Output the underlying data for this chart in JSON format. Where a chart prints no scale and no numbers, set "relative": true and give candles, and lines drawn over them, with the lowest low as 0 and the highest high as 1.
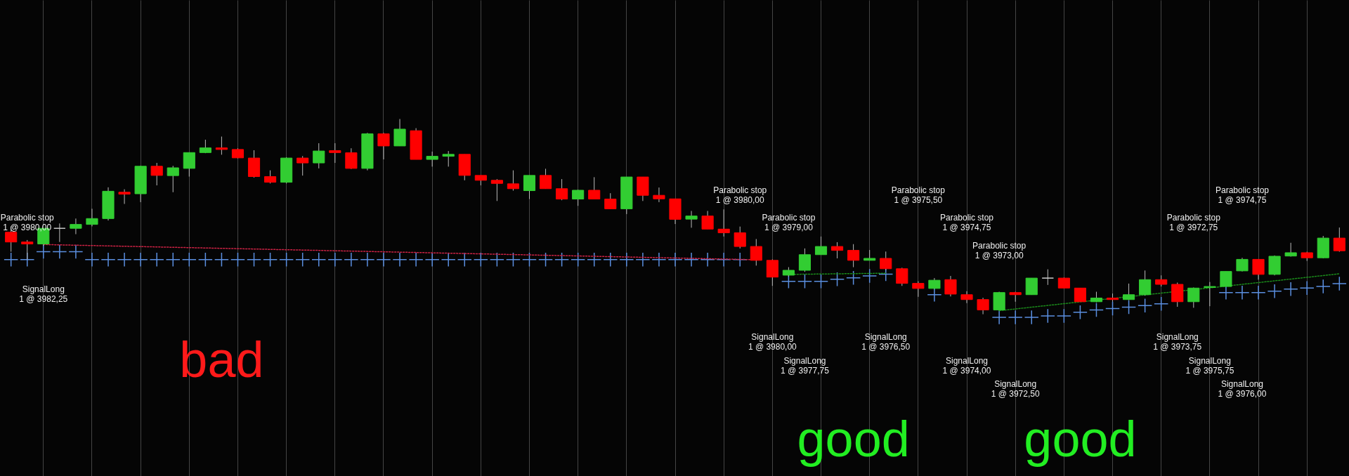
{
  "chart_data": {
    "type": "candlestick",
    "relative": true,
    "grid": "x",
    "tick_labels": false,
    "categories": [
      null,
      null,
      null,
      null,
      null,
      null,
      null,
      null,
      null,
      null,
      null,
      null,
      null,
      null,
      null,
      null,
      null,
      null,
      null,
      null,
      null,
      null,
      null,
      null,
      null,
      null,
      null,
      null,
      null,
      null,
      null,
      null,
      null,
      null,
      null,
      null,
      null,
      null,
      null,
      null,
      null,
      null,
      null,
      null,
      null,
      null,
      null,
      null,
      null,
      null,
      null,
      null,
      null,
      null,
      null,
      null,
      null,
      null,
      null,
      null,
      null,
      null,
      null,
      null,
      null,
      null,
      null,
      null,
      null,
      null,
      null,
      null,
      null,
      null,
      null,
      null,
      null,
      null,
      null,
      null,
      null,
      null,
      null
    ],
    "ohlc": [
      [
        0.42,
        0.45,
        0.32,
        0.37
      ],
      [
        0.37,
        0.38,
        0.28,
        0.36
      ],
      [
        0.36,
        0.44,
        0.35,
        0.44
      ],
      [
        0.44,
        0.465,
        0.37,
        0.44
      ],
      [
        0.44,
        0.49,
        0.41,
        0.46
      ],
      [
        0.46,
        0.54,
        0.45,
        0.49
      ],
      [
        0.49,
        0.65,
        0.48,
        0.63
      ],
      [
        0.625,
        0.64,
        0.565,
        0.615
      ],
      [
        0.617,
        0.761,
        0.574,
        0.758
      ],
      [
        0.758,
        0.775,
        0.66,
        0.711
      ],
      [
        0.71,
        0.76,
        0.625,
        0.75
      ],
      [
        0.747,
        0.828,
        0.705,
        0.828
      ],
      [
        0.828,
        0.894,
        0.825,
        0.852
      ],
      [
        0.852,
        0.91,
        0.817,
        0.844
      ],
      [
        0.844,
        0.85,
        0.798,
        0.801
      ],
      [
        0.8,
        0.84,
        0.7,
        0.705
      ],
      [
        0.705,
        0.737,
        0.67,
        0.676
      ],
      [
        0.676,
        0.804,
        0.67,
        0.8
      ],
      [
        0.8,
        0.81,
        0.71,
        0.775
      ],
      [
        0.775,
        0.876,
        0.747,
        0.836
      ],
      [
        0.838,
        0.876,
        0.775,
        0.828
      ],
      [
        0.827,
        0.85,
        0.744,
        0.747
      ],
      [
        0.747,
        0.929,
        0.737,
        0.924
      ],
      [
        0.924,
        0.929,
        0.793,
        0.862
      ],
      [
        0.862,
        1,
        0.862,
        0.948
      ],
      [
        0.94,
        0.953,
        0.793,
        0.793
      ],
      [
        0.793,
        0.833,
        0.756,
        0.809
      ],
      [
        0.809,
        0.836,
        0.756,
        0.819
      ],
      [
        0.819,
        0.819,
        0.686,
        0.711
      ],
      [
        0.711,
        0.711,
        0.66,
        0.686
      ],
      [
        0.686,
        0.692,
        0.58,
        0.67
      ],
      [
        0.668,
        0.737,
        0.633,
        0.643
      ],
      [
        0.633,
        0.711,
        0.59,
        0.711
      ],
      [
        0.711,
        0.745,
        0.643,
        0.643
      ],
      [
        0.643,
        0.692,
        0.584,
        0.59
      ],
      [
        0.59,
        0.638,
        0.555,
        0.635
      ],
      [
        0.635,
        0.702,
        0.59,
        0.59
      ],
      [
        0.59,
        0.62,
        0.54,
        0.54
      ],
      [
        0.54,
        0.703,
        0.513,
        0.703
      ],
      [
        0.703,
        0.703,
        0.58,
        0.609
      ],
      [
        0.609,
        0.649,
        0.574,
        0.591
      ],
      [
        0.591,
        0.591,
        0.462,
        0.486
      ],
      [
        0.487,
        0.529,
        0.443,
        0.503
      ],
      [
        0.503,
        0.529,
        0.436,
        0.436
      ],
      [
        0.436,
        0.537,
        0.398,
        0.417
      ],
      [
        0.417,
        0.449,
        0.337,
        0.347
      ],
      [
        0.347,
        0.385,
        0.249,
        0.276
      ],
      [
        0.276,
        0.281,
        0.145,
        0.19
      ],
      [
        0.2,
        0.241,
        0.193,
        0.225
      ],
      [
        0.225,
        0.337,
        0.217,
        0.305
      ],
      [
        0.305,
        0.398,
        0.305,
        0.347
      ],
      [
        0.347,
        0.369,
        0.286,
        0.327
      ],
      [
        0.327,
        0.359,
        0.241,
        0.276
      ],
      [
        0.276,
        0.329,
        0.276,
        0.286
      ],
      [
        0.286,
        0.321,
        0.225,
        0.233
      ],
      [
        0.233,
        0.238,
        0.145,
        0.158
      ],
      [
        0.158,
        0.169,
        0.089,
        0.132
      ],
      [
        0.132,
        0.185,
        0.129,
        0.174
      ],
      [
        0.177,
        0.196,
        0.091,
        0.103
      ],
      [
        0.1,
        0.118,
        0.057,
        0.075
      ],
      [
        0.075,
        0.084,
        0,
        0.022
      ],
      [
        0.022,
        0.115,
        0.019,
        0.111
      ],
      [
        0.111,
        0.115,
        0.064,
        0.1
      ],
      [
        0.1,
        0.185,
        0.1,
        0.185
      ],
      [
        0.185,
        0.23,
        0.15,
        0.185
      ],
      [
        0.185,
        0.188,
        0.134,
        0.134
      ],
      [
        0.134,
        0.134,
        0.064,
        0.064
      ],
      [
        0.064,
        0.115,
        0.061,
        0.083
      ],
      [
        0.083,
        0.106,
        0.064,
        0.075
      ],
      [
        0.075,
        0.157,
        0.072,
        0.1
      ],
      [
        0.1,
        0.224,
        0.095,
        0.177
      ],
      [
        0.177,
        0.199,
        0.142,
        0.153
      ],
      [
        0.153,
        0.162,
        0.038,
        0.064
      ],
      [
        0.064,
        0.137,
        0.033,
        0.134
      ],
      [
        0.137,
        0.165,
        0.041,
        0.142
      ],
      [
        0.142,
        0.219,
        0.142,
        0.219
      ],
      [
        0.222,
        0.289,
        0.219,
        0.281
      ],
      [
        0.281,
        0.281,
        0.177,
        0.204
      ],
      [
        0.204,
        0.301,
        0.199,
        0.297
      ],
      [
        0.298,
        0.366,
        0.295,
        0.315
      ],
      [
        0.315,
        0.32,
        0.273,
        0.289
      ],
      [
        0.289,
        0.401,
        0.286,
        0.39
      ],
      [
        0.39,
        0.444,
        0.32,
        0.325
      ]
    ],
    "colors": [
      "#ff0000",
      "#ff0000",
      "#32cd32",
      "#d0d0d0",
      "#32cd32",
      "#32cd32",
      "#32cd32",
      "#ff0000",
      "#32cd32",
      "#ff0000",
      "#32cd32",
      "#32cd32",
      "#32cd32",
      "#ff0000",
      "#ff0000",
      "#ff0000",
      "#ff0000",
      "#32cd32",
      "#ff0000",
      "#32cd32",
      "#ff0000",
      "#ff0000",
      "#32cd32",
      "#ff0000",
      "#32cd32",
      "#ff0000",
      "#32cd32",
      "#32cd32",
      "#ff0000",
      "#ff0000",
      "#ff0000",
      "#ff0000",
      "#32cd32",
      "#ff0000",
      "#ff0000",
      "#32cd32",
      "#ff0000",
      "#ff0000",
      "#32cd32",
      "#ff0000",
      "#ff0000",
      "#ff0000",
      "#32cd32",
      "#ff0000",
      "#ff0000",
      "#ff0000",
      "#ff0000",
      "#ff0000",
      "#32cd32",
      "#32cd32",
      "#32cd32",
      "#ff0000",
      "#ff0000",
      "#32cd32",
      "#ff0000",
      "#ff0000",
      "#ff0000",
      "#32cd32",
      "#ff0000",
      "#ff0000",
      "#ff0000",
      "#32cd32",
      "#ff0000",
      "#32cd32",
      "#d0d0d0",
      "#ff0000",
      "#ff0000",
      "#32cd32",
      "#ff0000",
      "#32cd32",
      "#32cd32",
      "#ff0000",
      "#ff0000",
      "#32cd32",
      "#32cd32",
      "#32cd32",
      "#32cd32",
      "#ff0000",
      "#32cd32",
      "#32cd32",
      "#ff0000",
      "#32cd32",
      "#ff0000"
    ],
    "series": [
      {
        "type": "scatter",
        "marker": "cross",
        "color": "#5b8fe0",
        "values": [
          0.28,
          0.28,
          0.32,
          0.32,
          0.32,
          0.28,
          0.28,
          0.28,
          0.28,
          0.28,
          0.28,
          0.28,
          0.28,
          0.28,
          0.28,
          0.28,
          0.28,
          0.28,
          0.28,
          0.28,
          0.28,
          0.28,
          0.28,
          0.28,
          0.28,
          0.28,
          0.28,
          0.28,
          0.28,
          0.28,
          0.28,
          0.28,
          0.28,
          0.28,
          0.28,
          0.28,
          0.28,
          0.28,
          0.28,
          0.28,
          0.28,
          0.28,
          0.28,
          0.28,
          0.28,
          0.28,
          null,
          null,
          0.168,
          0.168,
          0.168,
          0.179,
          0.186,
          0.196,
          0.205,
          null,
          null,
          0.1,
          null,
          null,
          null,
          -0.016,
          -0.016,
          -0.016,
          -0.009,
          -0.009,
          0.01,
          0.022,
          0.029,
          0.036,
          0.044,
          0.053,
          null,
          null,
          null,
          0.111,
          0.111,
          0.111,
          0.118,
          0.129,
          0.134,
          0.142,
          0.157
        ]
      },
      {
        "type": "line",
        "line_style": "dotted",
        "color": "#cc2244",
        "values": [
          null,
          null,
          0.357,
          null,
          null,
          null,
          null,
          null,
          null,
          null,
          null,
          null,
          null,
          null,
          null,
          null,
          null,
          null,
          null,
          null,
          null,
          null,
          null,
          null,
          null,
          null,
          null,
          null,
          null,
          null,
          null,
          null,
          null,
          null,
          null,
          null,
          null,
          null,
          null,
          null,
          null,
          null,
          null,
          null,
          null,
          null,
          0.279,
          null,
          null,
          null,
          null,
          null,
          null,
          null,
          null,
          null,
          null,
          null,
          null,
          null,
          null,
          null,
          null,
          null,
          null,
          null,
          null,
          null,
          null,
          null,
          null,
          null,
          null,
          null,
          null,
          null,
          null,
          null,
          null,
          null,
          null,
          null,
          null
        ]
      },
      {
        "type": "line",
        "line_style": "dotted",
        "color": "#1a8a1a",
        "values": [
          null,
          null,
          null,
          null,
          null,
          null,
          null,
          null,
          null,
          null,
          null,
          null,
          null,
          null,
          null,
          null,
          null,
          null,
          null,
          null,
          null,
          null,
          null,
          null,
          null,
          null,
          null,
          null,
          null,
          null,
          null,
          null,
          null,
          null,
          null,
          null,
          null,
          null,
          null,
          null,
          null,
          null,
          null,
          null,
          null,
          null,
          null,
          null,
          0.204,
          null,
          null,
          null,
          null,
          null,
          0.21,
          null,
          null,
          null,
          null,
          null,
          null,
          null,
          null,
          null,
          null,
          null,
          null,
          null,
          null,
          null,
          null,
          null,
          null,
          null,
          null,
          null,
          null,
          null,
          null,
          null,
          null,
          null,
          null
        ]
      },
      {
        "type": "line",
        "line_style": "dotted",
        "color": "#1a8a1a",
        "values": [
          null,
          null,
          null,
          null,
          null,
          null,
          null,
          null,
          null,
          null,
          null,
          null,
          null,
          null,
          null,
          null,
          null,
          null,
          null,
          null,
          null,
          null,
          null,
          null,
          null,
          null,
          null,
          null,
          null,
          null,
          null,
          null,
          null,
          null,
          null,
          null,
          null,
          null,
          null,
          null,
          null,
          null,
          null,
          null,
          null,
          null,
          null,
          null,
          null,
          null,
          null,
          null,
          null,
          null,
          null,
          null,
          null,
          null,
          null,
          null,
          null,
          0.018,
          null,
          null,
          null,
          null,
          null,
          null,
          null,
          null,
          null,
          null,
          null,
          null,
          null,
          null,
          null,
          null,
          null,
          null,
          null,
          null,
          0.207
        ]
      }
    ],
    "annotations": [
      "Parabolic stop\n1 @ 3980,00",
      "SignalLong\n1 @ 3982,25",
      "Parabolic stop\n1 @ 3980,00",
      "Parabolic stop\n1 @ 3979,00",
      "SignalLong\n1 @ 3980,00",
      "SignalLong\n1 @ 3977,75",
      "Parabolic stop\n1 @ 3975,50",
      "Parabolic stop\n1 @ 3974,75",
      "Parabolic stop\n1 @ 3973,00",
      "SignalLong\n1 @ 3976,50",
      "SignalLong\n1 @ 3974,00",
      "SignalLong\n1 @ 3972,50",
      "Parabolic stop\n1 @ 3972,75",
      "Parabolic stop\n1 @ 3974,75",
      "SignalLong\n1 @ 3973,75",
      "SignalLong\n1 @ 3975,75",
      "SignalLong\n1 @ 3976,00",
      "bad",
      "good",
      "good"
    ]
  }
}
